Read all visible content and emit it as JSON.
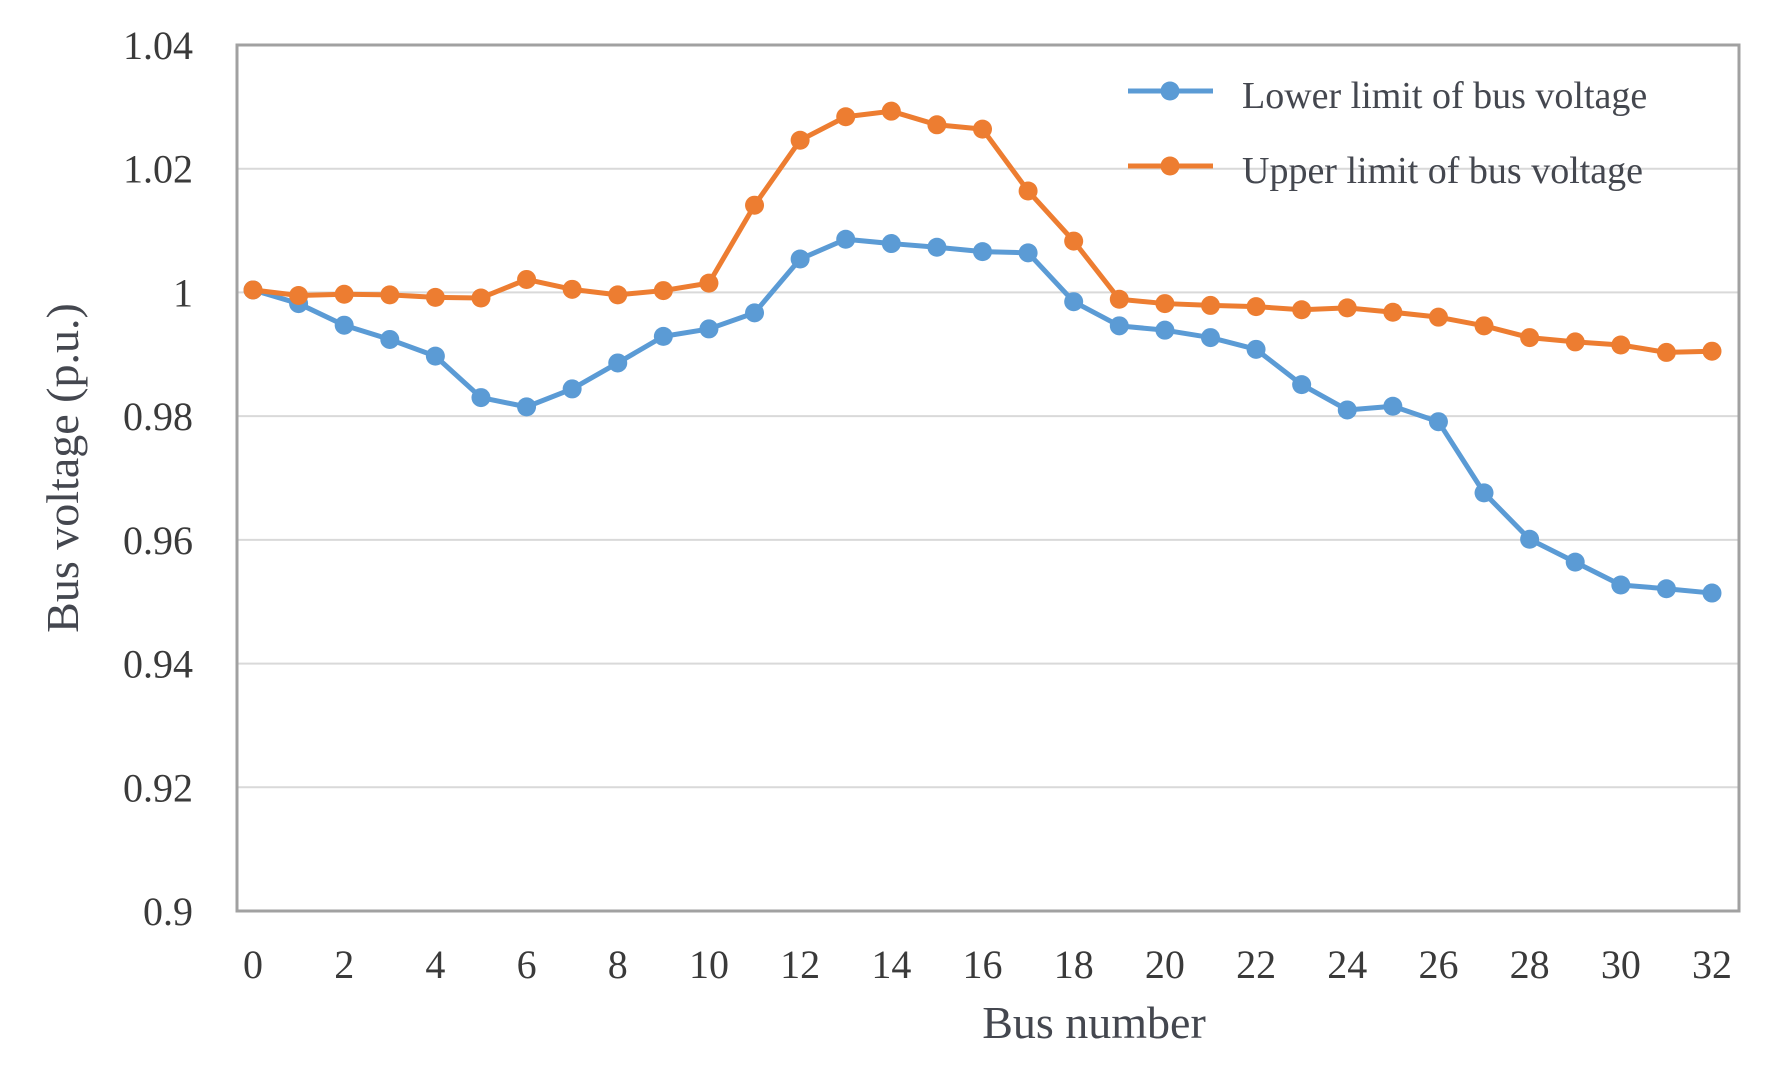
{
  "chart_data": {
    "type": "line",
    "title": "",
    "xlabel": "Bus number",
    "ylabel": "Bus voltage (p.u.)",
    "x": [
      0,
      1,
      2,
      3,
      4,
      5,
      6,
      7,
      8,
      9,
      10,
      11,
      12,
      13,
      14,
      15,
      16,
      17,
      18,
      19,
      20,
      21,
      22,
      23,
      24,
      25,
      26,
      27,
      28,
      29,
      30,
      31,
      32
    ],
    "x_tick_labels": [
      "0",
      "2",
      "4",
      "6",
      "8",
      "10",
      "12",
      "14",
      "16",
      "18",
      "20",
      "22",
      "24",
      "26",
      "28",
      "30",
      "32"
    ],
    "y_tick_labels": [
      "1.04",
      "1.02",
      "1",
      "0.98",
      "0.96",
      "0.94",
      "0.92",
      "0.9"
    ],
    "ylim": [
      0.9,
      1.04
    ],
    "xlim": [
      0,
      32
    ],
    "grid": "horizontal",
    "legend_position": "top-right-inside",
    "series": [
      {
        "name": "Lower limit of bus voltage",
        "color": "#5B9BD5",
        "marker": "circle",
        "values": [
          1.0004,
          0.9982,
          0.9947,
          0.9924,
          0.9897,
          0.983,
          0.9815,
          0.9844,
          0.9886,
          0.9929,
          0.9941,
          0.9967,
          1.0054,
          1.0086,
          1.0079,
          1.0073,
          1.0066,
          1.0064,
          0.9985,
          0.9946,
          0.9939,
          0.9927,
          0.9908,
          0.9851,
          0.981,
          0.9816,
          0.9791,
          0.9676,
          0.9601,
          0.9564,
          0.9527,
          0.9521,
          0.9514
        ]
      },
      {
        "name": "Upper limit of bus voltage",
        "color": "#ED7D31",
        "marker": "circle",
        "values": [
          1.0004,
          0.9995,
          0.9997,
          0.9996,
          0.9992,
          0.9991,
          1.0021,
          1.0005,
          0.9996,
          1.0003,
          1.0015,
          1.0141,
          1.0246,
          1.0284,
          1.0293,
          1.0271,
          1.0264,
          1.0164,
          1.0083,
          0.9989,
          0.9982,
          0.9979,
          0.9977,
          0.9972,
          0.9975,
          0.9968,
          0.996,
          0.9946,
          0.9927,
          0.992,
          0.9915,
          0.9903,
          0.9905
        ]
      }
    ]
  },
  "styles": {
    "background": "#ffffff",
    "grid_color": "#d9d9d9",
    "axis_color": "#a1a1a1",
    "text_color": "#3a3a3a"
  }
}
